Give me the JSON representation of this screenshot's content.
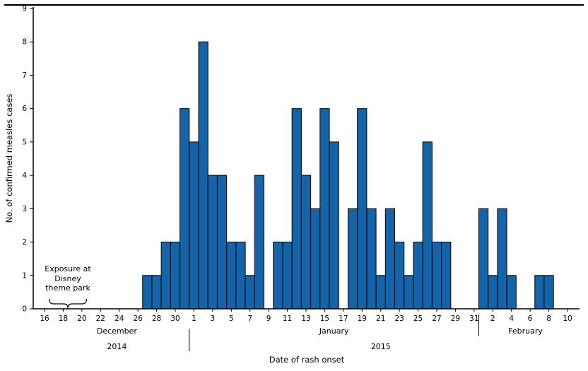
{
  "page": {
    "background": "#ffffff"
  },
  "chart_data": {
    "type": "bar",
    "title": "",
    "xlabel": "Date of rash onset",
    "ylabel": "No. of confirmed measles cases",
    "ylim": [
      0,
      9
    ],
    "y_ticks": [
      0,
      1,
      2,
      3,
      4,
      5,
      6,
      7,
      8,
      9
    ],
    "grid": false,
    "legend": "none",
    "bar_color": "#1563a8",
    "bar_border_color": "#000000",
    "x_tick_step_days": 2,
    "x_tick_labels": [
      "16",
      "18",
      "20",
      "22",
      "24",
      "26",
      "28",
      "30",
      "1",
      "3",
      "5",
      "7",
      "9",
      "11",
      "13",
      "15",
      "17",
      "19",
      "21",
      "23",
      "25",
      "27",
      "29",
      "31",
      "2",
      "4",
      "6",
      "8",
      "10"
    ],
    "dates": [
      "2014-12-16",
      "2014-12-17",
      "2014-12-18",
      "2014-12-19",
      "2014-12-20",
      "2014-12-21",
      "2014-12-22",
      "2014-12-23",
      "2014-12-24",
      "2014-12-25",
      "2014-12-26",
      "2014-12-27",
      "2014-12-28",
      "2014-12-29",
      "2014-12-30",
      "2014-12-31",
      "2015-01-01",
      "2015-01-02",
      "2015-01-03",
      "2015-01-04",
      "2015-01-05",
      "2015-01-06",
      "2015-01-07",
      "2015-01-08",
      "2015-01-09",
      "2015-01-10",
      "2015-01-11",
      "2015-01-12",
      "2015-01-13",
      "2015-01-14",
      "2015-01-15",
      "2015-01-16",
      "2015-01-17",
      "2015-01-18",
      "2015-01-19",
      "2015-01-20",
      "2015-01-21",
      "2015-01-22",
      "2015-01-23",
      "2015-01-24",
      "2015-01-25",
      "2015-01-26",
      "2015-01-27",
      "2015-01-28",
      "2015-01-29",
      "2015-01-30",
      "2015-01-31",
      "2015-02-01",
      "2015-02-02",
      "2015-02-03",
      "2015-02-04",
      "2015-02-05",
      "2015-02-06",
      "2015-02-07",
      "2015-02-08",
      "2015-02-09",
      "2015-02-10"
    ],
    "values": [
      0,
      0,
      0,
      0,
      0,
      0,
      0,
      0,
      0,
      0,
      0,
      1,
      1,
      2,
      2,
      6,
      5,
      8,
      4,
      4,
      2,
      2,
      1,
      4,
      0,
      2,
      2,
      6,
      4,
      3,
      6,
      5,
      0,
      3,
      6,
      3,
      1,
      3,
      2,
      1,
      2,
      5,
      2,
      2,
      0,
      0,
      0,
      3,
      1,
      3,
      1,
      0,
      0,
      1,
      1,
      0,
      0
    ],
    "months": [
      {
        "label": "December",
        "start_day": 0,
        "end_day": 15.5
      },
      {
        "label": "January",
        "start_day": 15.5,
        "end_day": 46.5
      },
      {
        "label": "February",
        "start_day": 46.5,
        "end_day": 56.5
      }
    ],
    "years": [
      {
        "label": "2014",
        "start_day": 0,
        "end_day": 15.5
      },
      {
        "label": "2015",
        "start_day": 15.5,
        "end_day": 56.5
      }
    ],
    "month_separator_days": [
      15.5,
      46.5
    ],
    "annotation": {
      "label": "Exposure at\nDisney\ntheme park",
      "start_day": 1,
      "end_day": 4
    }
  }
}
